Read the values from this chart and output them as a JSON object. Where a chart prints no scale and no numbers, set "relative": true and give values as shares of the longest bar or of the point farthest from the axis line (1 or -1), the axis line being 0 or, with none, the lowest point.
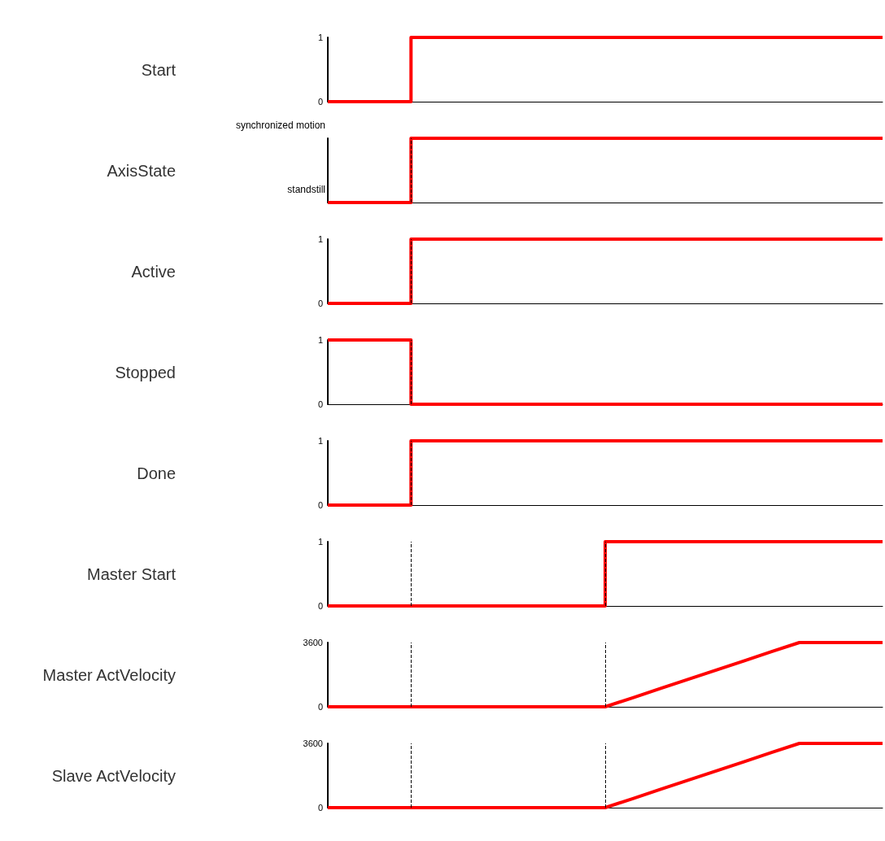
{
  "chart_data": [
    {
      "type": "step",
      "ylabel": "Start",
      "categories": [
        null,
        null,
        null,
        null,
        null,
        null,
        null,
        null,
        null,
        null,
        null,
        null,
        null,
        null,
        null,
        null,
        null,
        null,
        null,
        null,
        null
      ],
      "values": [
        0,
        0,
        0,
        1,
        1,
        1,
        1,
        1,
        1,
        1,
        1,
        1,
        1,
        1,
        1,
        1,
        1,
        1,
        1,
        1,
        1
      ],
      "color": "#ff0000",
      "ylim": [
        0,
        1
      ],
      "yticks": [
        0,
        1
      ],
      "marker": "none",
      "tick_labels": "y"
    },
    {
      "type": "step",
      "ylabel": "AxisState",
      "categories": [
        null,
        null,
        null,
        null,
        null,
        null,
        null,
        null,
        null,
        null,
        null,
        null,
        null,
        null,
        null,
        null,
        null,
        null,
        null,
        null,
        null
      ],
      "values": [
        0,
        0,
        0,
        1,
        1,
        1,
        1,
        1,
        1,
        1,
        1,
        1,
        1,
        1,
        1,
        1,
        1,
        1,
        1,
        1,
        1
      ],
      "color": "#ff0000",
      "relative": true,
      "annotations": [
        "synchronized motion",
        "standstill"
      ],
      "marker": "none",
      "tick_labels": "y"
    },
    {
      "type": "step",
      "ylabel": "Active",
      "categories": [
        null,
        null,
        null,
        null,
        null,
        null,
        null,
        null,
        null,
        null,
        null,
        null,
        null,
        null,
        null,
        null,
        null,
        null,
        null,
        null,
        null
      ],
      "values": [
        0,
        0,
        0,
        1,
        1,
        1,
        1,
        1,
        1,
        1,
        1,
        1,
        1,
        1,
        1,
        1,
        1,
        1,
        1,
        1,
        1
      ],
      "color": "#ff0000",
      "ylim": [
        0,
        1
      ],
      "yticks": [
        0,
        1
      ],
      "marker": "none",
      "tick_labels": "y"
    },
    {
      "type": "step",
      "ylabel": "Stopped",
      "categories": [
        null,
        null,
        null,
        null,
        null,
        null,
        null,
        null,
        null,
        null,
        null,
        null,
        null,
        null,
        null,
        null,
        null,
        null,
        null,
        null,
        null
      ],
      "values": [
        1,
        1,
        1,
        0,
        0,
        0,
        0,
        0,
        0,
        0,
        0,
        0,
        0,
        0,
        0,
        0,
        0,
        0,
        0,
        0,
        0
      ],
      "color": "#ff0000",
      "ylim": [
        0,
        1
      ],
      "yticks": [
        0,
        1
      ],
      "marker": "none",
      "tick_labels": "y"
    },
    {
      "type": "step",
      "ylabel": "Done",
      "categories": [
        null,
        null,
        null,
        null,
        null,
        null,
        null,
        null,
        null,
        null,
        null,
        null,
        null,
        null,
        null,
        null,
        null,
        null,
        null,
        null,
        null
      ],
      "values": [
        0,
        0,
        0,
        1,
        1,
        1,
        1,
        1,
        1,
        1,
        1,
        1,
        1,
        1,
        1,
        1,
        1,
        1,
        1,
        1,
        1
      ],
      "color": "#ff0000",
      "ylim": [
        0,
        1
      ],
      "yticks": [
        0,
        1
      ],
      "marker": "none",
      "tick_labels": "y"
    },
    {
      "type": "step",
      "ylabel": "Master Start",
      "categories": [
        null,
        null,
        null,
        null,
        null,
        null,
        null,
        null,
        null,
        null,
        null,
        null,
        null,
        null,
        null,
        null,
        null,
        null,
        null,
        null,
        null
      ],
      "values": [
        0,
        0,
        0,
        0,
        0,
        0,
        0,
        0,
        0,
        0,
        1,
        1,
        1,
        1,
        1,
        1,
        1,
        1,
        1,
        1,
        1
      ],
      "color": "#ff0000",
      "ylim": [
        0,
        1
      ],
      "yticks": [
        0,
        1
      ],
      "marker": "none",
      "tick_labels": "y"
    },
    {
      "type": "line",
      "ylabel": "Master ActVelocity",
      "categories": [
        null,
        null,
        null,
        null,
        null,
        null,
        null,
        null,
        null,
        null,
        null,
        null,
        null,
        null,
        null,
        null,
        null,
        null,
        null,
        null,
        null
      ],
      "values": [
        0,
        0,
        0,
        0,
        0,
        0,
        0,
        0,
        0,
        0,
        0,
        510,
        1030,
        1540,
        2060,
        2570,
        3090,
        3600,
        3600,
        3600,
        3600
      ],
      "color": "#ff0000",
      "ylim": [
        0,
        3600
      ],
      "yticks": [
        0,
        3600
      ],
      "marker": "none",
      "tick_labels": "y"
    },
    {
      "type": "line",
      "ylabel": "Slave ActVelocity",
      "categories": [
        null,
        null,
        null,
        null,
        null,
        null,
        null,
        null,
        null,
        null,
        null,
        null,
        null,
        null,
        null,
        null,
        null,
        null,
        null,
        null,
        null
      ],
      "values": [
        0,
        0,
        0,
        0,
        0,
        0,
        0,
        0,
        0,
        0,
        0,
        510,
        1030,
        1540,
        2060,
        2570,
        3090,
        3600,
        3600,
        3600,
        3600
      ],
      "color": "#ff0000",
      "ylim": [
        0,
        3600
      ],
      "yticks": [
        0,
        3600
      ],
      "marker": "none",
      "tick_labels": "y"
    }
  ]
}
